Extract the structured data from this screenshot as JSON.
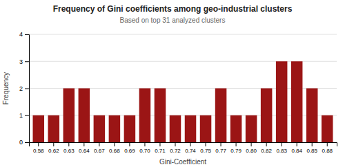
{
  "chart_data": {
    "type": "bar",
    "title": "Frequency of Gini coefficients among geo-industrial clusters",
    "subtitle": "Based on top 31 analyzed clusters",
    "x_label": "Gini-Coefficient",
    "y_label": "Frequency",
    "categories": [
      "0.58",
      "0.62",
      "0.63",
      "0.64",
      "0.67",
      "0.68",
      "0.69",
      "0.70",
      "0.71",
      "0.72",
      "0.74",
      "0.75",
      "0.77",
      "0.79",
      "0.80",
      "0.82",
      "0.83",
      "0.84",
      "0.85",
      "0.88"
    ],
    "values": [
      1,
      1,
      2,
      2,
      1,
      1,
      1,
      2,
      2,
      1,
      1,
      1,
      2,
      1,
      1,
      2,
      3,
      3,
      2,
      1
    ],
    "color": "#9B1515",
    "ylim": [
      0,
      4
    ],
    "yticks": [
      0,
      1,
      2,
      3,
      4
    ],
    "grid": true
  }
}
